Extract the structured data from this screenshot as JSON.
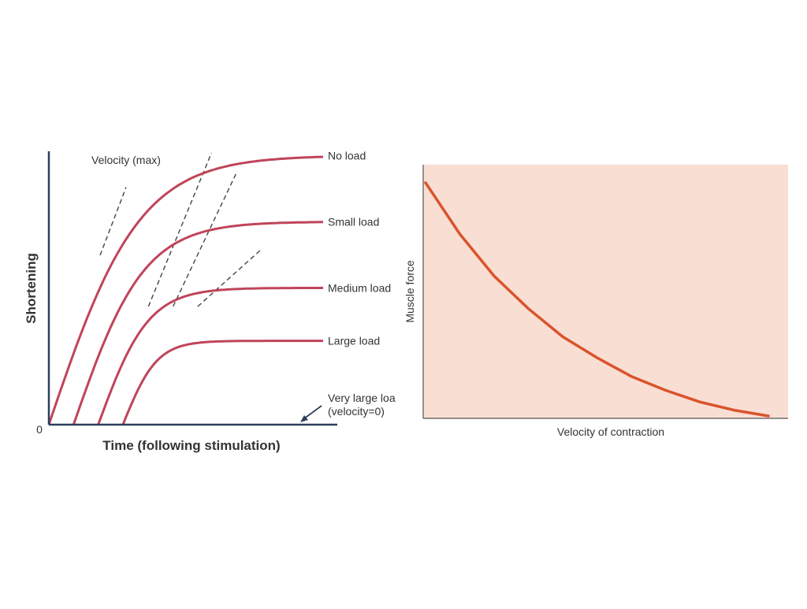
{
  "chart_data": [
    {
      "type": "line",
      "xlabel": "Time (following stimulation)",
      "ylabel": "Shortening",
      "origin_label": "0",
      "annotations": [
        "Velocity (max)"
      ],
      "series": [
        {
          "name": "No load",
          "color": "#c0445a",
          "start": 0,
          "y_final": 6.1
        },
        {
          "name": "Small load",
          "color": "#c0445a",
          "start": 0.09,
          "y_final": 4.6
        },
        {
          "name": "Medium load",
          "color": "#c0445a",
          "start": 0.18,
          "y_final": 3.1
        },
        {
          "name": "Large load",
          "color": "#c0445a",
          "start": 0.27,
          "y_final": 1.9
        },
        {
          "name": "Very large load",
          "label_lines": [
            "Very large loa",
            "(velocity=0)"
          ],
          "color": "#2d3f5c",
          "start": 0,
          "y_final": 0
        }
      ]
    },
    {
      "type": "line",
      "xlabel": "Velocity of contraction",
      "ylabel": "Muscle force",
      "background_color": "#f9ded3",
      "line_color": "#d9542c",
      "series": [
        {
          "x": [
            0,
            0.1,
            0.2,
            0.3,
            0.4,
            0.5,
            0.6,
            0.7,
            0.8,
            0.9,
            1.0
          ],
          "y": [
            1.0,
            0.78,
            0.6,
            0.46,
            0.34,
            0.25,
            0.17,
            0.11,
            0.06,
            0.025,
            0.0
          ]
        }
      ]
    }
  ]
}
